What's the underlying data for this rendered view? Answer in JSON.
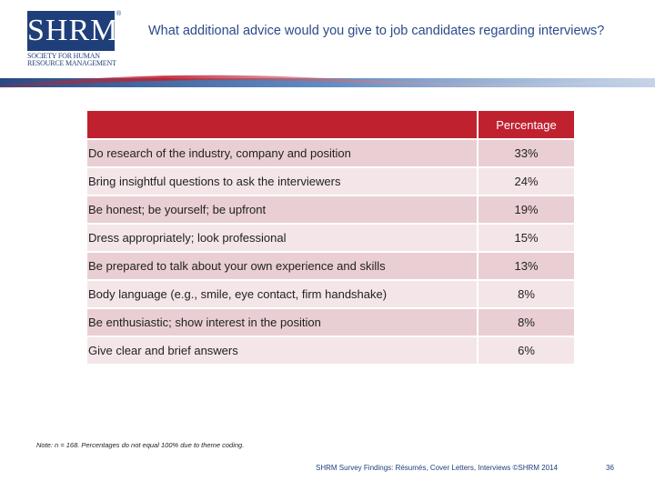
{
  "logo": {
    "mark": "SHRM",
    "registered": "®",
    "line1": "SOCIETY FOR HUMAN",
    "line2": "RESOURCE MANAGEMENT"
  },
  "title": "What additional advice would you give to job candidates regarding interviews?",
  "table": {
    "header": "Percentage",
    "rows": [
      {
        "label": "Do research of the industry, company and position",
        "value": "33%"
      },
      {
        "label": "Bring insightful questions to ask the interviewers",
        "value": "24%"
      },
      {
        "label": "Be honest; be yourself; be upfront",
        "value": "19%"
      },
      {
        "label": "Dress appropriately; look professional",
        "value": "15%"
      },
      {
        "label": "Be prepared to talk about your own experience and skills",
        "value": "13%"
      },
      {
        "label": "Body language (e.g., smile, eye contact, firm handshake)",
        "value": "8%"
      },
      {
        "label": "Be enthusiastic; show interest in the position",
        "value": "8%"
      },
      {
        "label": "Give clear and brief answers",
        "value": "6%"
      }
    ]
  },
  "note": "Note: n = 168. Percentages do not equal 100% due to theme coding.",
  "footer": "SHRM Survey Findings: Résumés, Cover Letters, Interviews ©SHRM 2014",
  "page_number": "36",
  "colors": {
    "header": "#c0212f",
    "brand": "#1f3f7a"
  }
}
